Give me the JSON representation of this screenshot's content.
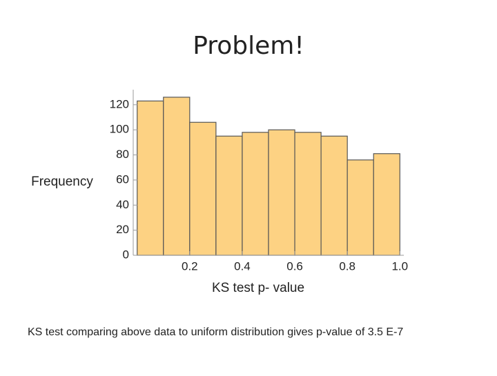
{
  "title": "Problem!",
  "caption": "KS test comparing above data to uniform distribution gives p-value of 3.5 E-7",
  "chart_data": {
    "type": "histogram",
    "bins": [
      0,
      0.1,
      0.2,
      0.3,
      0.4,
      0.5,
      0.6,
      0.7,
      0.8,
      0.9,
      1
    ],
    "values": [
      123,
      126,
      106,
      95,
      98,
      100,
      98,
      95,
      76,
      81
    ],
    "color": "#fdd283",
    "xlabel": "KS test p- value",
    "ylabel": "Frequency",
    "xlim": [
      -0.015,
      1.015
    ],
    "ylim": [
      0,
      132
    ],
    "xticks": [
      0.2,
      0.4,
      0.6,
      0.8,
      {
        "value": 1,
        "label": "1.0"
      }
    ],
    "yticks": [
      0,
      20,
      40,
      60,
      80,
      100,
      120
    ]
  }
}
